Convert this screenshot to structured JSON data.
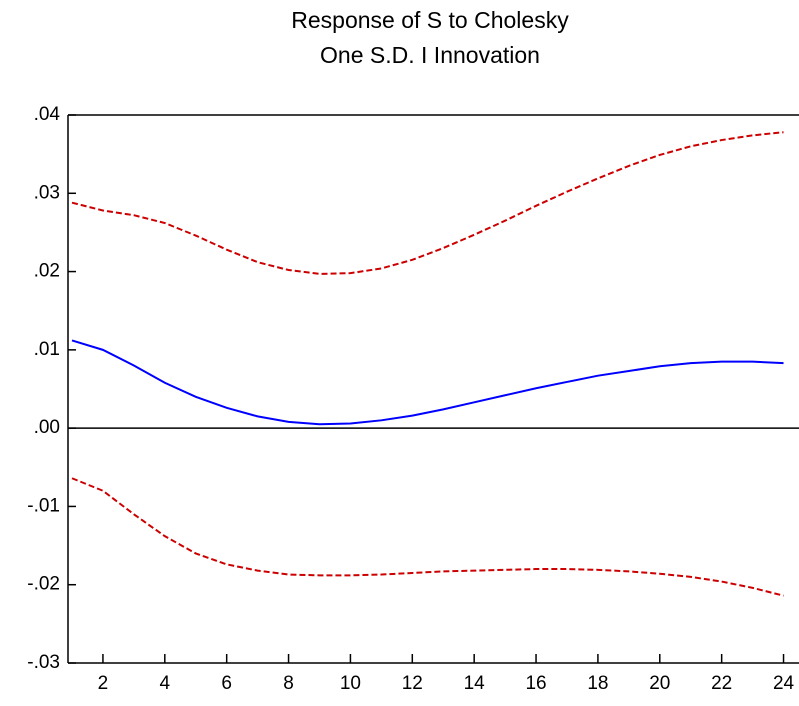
{
  "chart_data": {
    "type": "line",
    "title": [
      "Response of S to Cholesky",
      "One S.D. I Innovation"
    ],
    "x": [
      1,
      2,
      3,
      4,
      5,
      6,
      7,
      8,
      9,
      10,
      11,
      12,
      13,
      14,
      15,
      16,
      17,
      18,
      19,
      20,
      21,
      22,
      23,
      24
    ],
    "xlim": [
      1,
      24.5
    ],
    "xticks": [
      2,
      4,
      6,
      8,
      10,
      12,
      14,
      16,
      18,
      20,
      22,
      24
    ],
    "ylim": [
      -0.03,
      0.04
    ],
    "yticks": [
      {
        "value": 0.04,
        "label": ".04"
      },
      {
        "value": 0.03,
        "label": ".03"
      },
      {
        "value": 0.02,
        "label": ".02"
      },
      {
        "value": 0.01,
        "label": ".01"
      },
      {
        "value": 0,
        "label": ".00"
      },
      {
        "value": -0.01,
        "label": "-.01"
      },
      {
        "value": -0.02,
        "label": "-.02"
      },
      {
        "value": -0.03,
        "label": "-.03"
      }
    ],
    "zero_line": true,
    "series": [
      {
        "color": "#0000ff",
        "dashed": false,
        "values": [
          0.0112,
          0.01,
          0.008,
          0.0058,
          0.004,
          0.0026,
          0.0015,
          0.0008,
          0.0005,
          0.0006,
          0.001,
          0.0016,
          0.0024,
          0.0033,
          0.0042,
          0.0051,
          0.0059,
          0.0067,
          0.0073,
          0.0079,
          0.0083,
          0.0085,
          0.0085,
          0.0083
        ]
      },
      {
        "color": "#cc0000",
        "dashed": true,
        "values": [
          0.0288,
          0.0278,
          0.0272,
          0.0262,
          0.0246,
          0.0228,
          0.0212,
          0.0202,
          0.0197,
          0.0198,
          0.0204,
          0.0215,
          0.023,
          0.0247,
          0.0265,
          0.0284,
          0.0302,
          0.0319,
          0.0335,
          0.0349,
          0.036,
          0.0368,
          0.0374,
          0.0378
        ]
      },
      {
        "color": "#cc0000",
        "dashed": true,
        "values": [
          -0.0064,
          -0.008,
          -0.011,
          -0.0138,
          -0.016,
          -0.0174,
          -0.0182,
          -0.0187,
          -0.0188,
          -0.0188,
          -0.0187,
          -0.0185,
          -0.0183,
          -0.0182,
          -0.0181,
          -0.018,
          -0.018,
          -0.0181,
          -0.0183,
          -0.0186,
          -0.019,
          -0.0196,
          -0.0204,
          -0.0214
        ]
      }
    ]
  }
}
